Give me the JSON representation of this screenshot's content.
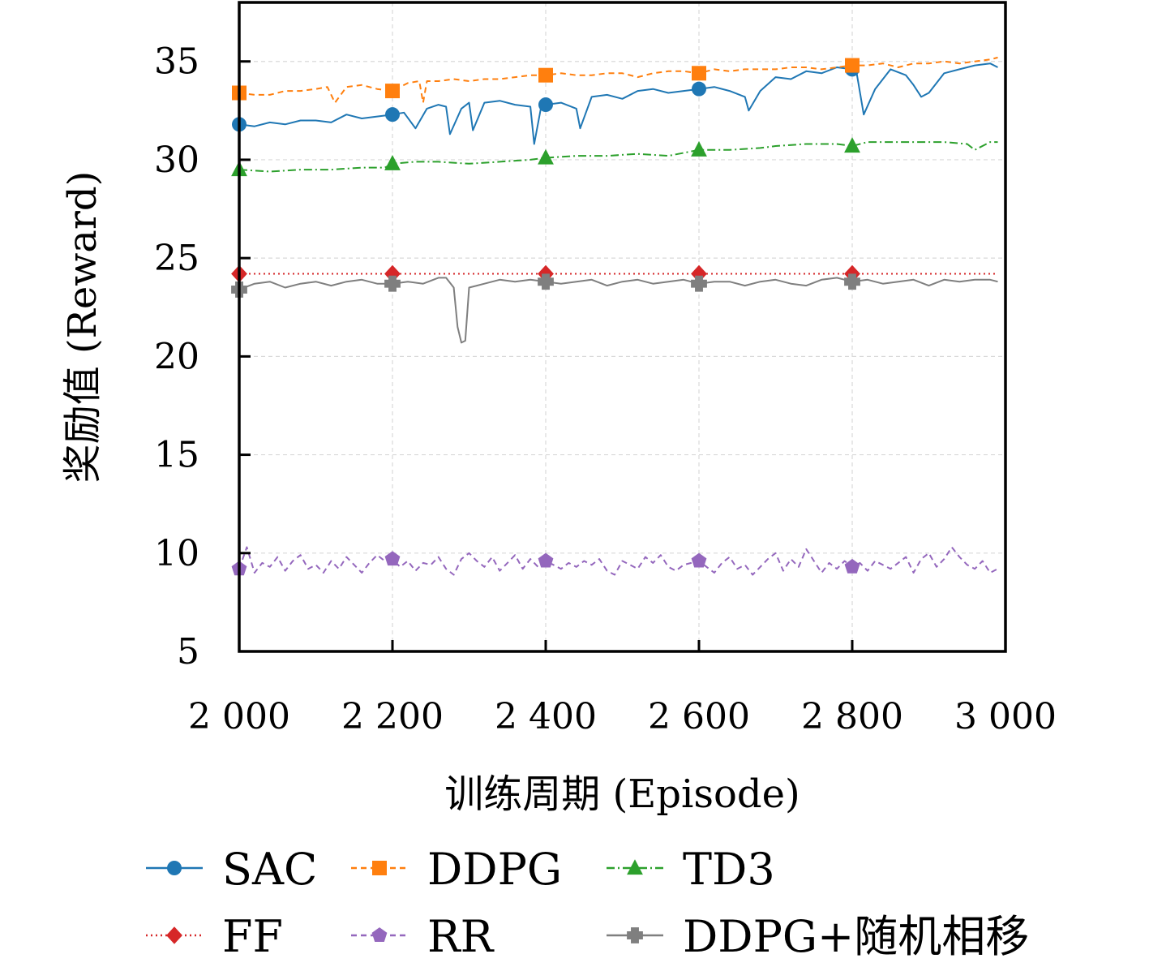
{
  "chart_data": {
    "type": "line",
    "title": "",
    "xlabel": "训练周期 (Episode)",
    "ylabel": "奖励值 (Reward)",
    "xlim": [
      2000,
      3000
    ],
    "ylim": [
      5,
      38
    ],
    "xticks": [
      2000,
      2200,
      2400,
      2600,
      2800,
      3000
    ],
    "xtick_labels": [
      "2 000",
      "2 200",
      "2 400",
      "2 600",
      "2 800",
      "3 000"
    ],
    "yticks": [
      5,
      10,
      15,
      20,
      25,
      30,
      35
    ],
    "ytick_labels": [
      "5",
      "10",
      "15",
      "20",
      "25",
      "30",
      "35"
    ],
    "grid": true,
    "legend_position": "bottom",
    "marker_x": [
      2000,
      2200,
      2400,
      2600,
      2800
    ],
    "series": [
      {
        "name": "SAC",
        "color": "#1f77b4",
        "dash": "solid",
        "marker": "circle",
        "x": [
          2000,
          2020,
          2040,
          2060,
          2080,
          2100,
          2120,
          2140,
          2160,
          2180,
          2200,
          2215,
          2230,
          2245,
          2260,
          2270,
          2275,
          2290,
          2300,
          2305,
          2320,
          2340,
          2360,
          2380,
          2385,
          2395,
          2400,
          2420,
          2440,
          2445,
          2460,
          2480,
          2500,
          2520,
          2540,
          2560,
          2580,
          2600,
          2620,
          2640,
          2660,
          2665,
          2680,
          2700,
          2720,
          2740,
          2760,
          2780,
          2800,
          2805,
          2815,
          2830,
          2850,
          2870,
          2880,
          2890,
          2900,
          2920,
          2940,
          2960,
          2980,
          2990
        ],
        "values": [
          31.8,
          31.7,
          31.9,
          31.8,
          32.0,
          32.0,
          31.9,
          32.3,
          32.1,
          32.2,
          32.3,
          32.4,
          31.6,
          32.6,
          32.8,
          32.7,
          31.3,
          32.6,
          32.9,
          31.5,
          32.9,
          33.0,
          32.8,
          32.7,
          30.8,
          32.9,
          32.8,
          32.9,
          32.6,
          31.6,
          33.2,
          33.3,
          33.1,
          33.5,
          33.6,
          33.4,
          33.5,
          33.6,
          33.7,
          33.5,
          33.2,
          32.5,
          33.5,
          34.2,
          34.1,
          34.5,
          34.4,
          34.7,
          34.6,
          34.6,
          32.3,
          33.6,
          34.6,
          34.3,
          33.8,
          33.2,
          33.4,
          34.4,
          34.6,
          34.8,
          34.9,
          34.7
        ]
      },
      {
        "name": "DDPG",
        "color": "#ff7f0e",
        "dash": "dashed",
        "marker": "square",
        "x": [
          2000,
          2020,
          2040,
          2060,
          2080,
          2100,
          2115,
          2125,
          2140,
          2160,
          2180,
          2200,
          2220,
          2235,
          2240,
          2245,
          2260,
          2280,
          2300,
          2320,
          2340,
          2360,
          2380,
          2400,
          2420,
          2440,
          2460,
          2480,
          2500,
          2520,
          2540,
          2560,
          2580,
          2600,
          2620,
          2640,
          2660,
          2680,
          2700,
          2720,
          2740,
          2760,
          2780,
          2800,
          2820,
          2840,
          2860,
          2880,
          2900,
          2920,
          2940,
          2960,
          2980,
          2990
        ],
        "values": [
          33.4,
          33.3,
          33.3,
          33.5,
          33.5,
          33.6,
          33.7,
          32.9,
          33.7,
          33.8,
          33.6,
          33.5,
          33.9,
          34.0,
          32.9,
          34.0,
          34.0,
          34.1,
          34.0,
          34.1,
          34.1,
          34.2,
          34.3,
          34.3,
          34.4,
          34.3,
          34.3,
          34.4,
          34.4,
          34.2,
          34.4,
          34.5,
          34.5,
          34.4,
          34.6,
          34.5,
          34.6,
          34.6,
          34.6,
          34.7,
          34.7,
          34.6,
          34.7,
          34.8,
          34.8,
          34.9,
          34.7,
          34.9,
          34.9,
          35.0,
          34.9,
          35.0,
          35.1,
          35.2
        ]
      },
      {
        "name": "TD3",
        "color": "#2ca02c",
        "dash": "dashdot",
        "marker": "triangle",
        "x": [
          2000,
          2040,
          2080,
          2120,
          2160,
          2190,
          2200,
          2230,
          2260,
          2300,
          2340,
          2380,
          2400,
          2440,
          2480,
          2520,
          2560,
          2600,
          2640,
          2680,
          2700,
          2740,
          2780,
          2800,
          2820,
          2840,
          2880,
          2920,
          2950,
          2960,
          2980,
          2990
        ],
        "values": [
          29.5,
          29.4,
          29.5,
          29.5,
          29.6,
          29.6,
          29.8,
          29.9,
          29.9,
          29.8,
          29.9,
          30.0,
          30.1,
          30.2,
          30.2,
          30.3,
          30.2,
          30.5,
          30.5,
          30.6,
          30.7,
          30.8,
          30.8,
          30.7,
          30.9,
          30.9,
          30.9,
          30.9,
          30.8,
          30.5,
          30.9,
          30.9
        ]
      },
      {
        "name": "FF",
        "color": "#d62728",
        "dash": "dotted",
        "marker": "diamond",
        "x": [
          2000,
          2990
        ],
        "values": [
          24.2,
          24.2
        ]
      },
      {
        "name": "RR",
        "color": "#9467bd",
        "dash": "dashed",
        "marker": "pentagon",
        "x": [
          2000,
          2010,
          2020,
          2030,
          2040,
          2050,
          2060,
          2070,
          2080,
          2090,
          2100,
          2110,
          2120,
          2130,
          2140,
          2150,
          2160,
          2170,
          2180,
          2190,
          2200,
          2210,
          2220,
          2230,
          2240,
          2250,
          2260,
          2270,
          2280,
          2290,
          2300,
          2310,
          2320,
          2330,
          2340,
          2350,
          2360,
          2370,
          2380,
          2390,
          2400,
          2410,
          2420,
          2430,
          2440,
          2450,
          2460,
          2470,
          2480,
          2490,
          2500,
          2510,
          2520,
          2530,
          2540,
          2550,
          2560,
          2570,
          2580,
          2590,
          2600,
          2610,
          2620,
          2630,
          2640,
          2650,
          2660,
          2670,
          2680,
          2690,
          2700,
          2710,
          2720,
          2730,
          2740,
          2750,
          2760,
          2770,
          2780,
          2790,
          2800,
          2810,
          2820,
          2830,
          2840,
          2850,
          2860,
          2870,
          2880,
          2890,
          2900,
          2910,
          2920,
          2930,
          2940,
          2950,
          2960,
          2970,
          2980,
          2990
        ],
        "values": [
          9.2,
          10.3,
          9.0,
          9.5,
          9.3,
          9.8,
          9.1,
          9.6,
          9.9,
          9.2,
          9.4,
          9.0,
          9.6,
          9.2,
          9.8,
          9.4,
          9.0,
          9.5,
          9.9,
          9.6,
          9.7,
          9.3,
          9.6,
          9.1,
          9.5,
          9.4,
          9.8,
          9.2,
          8.9,
          9.7,
          10.0,
          9.6,
          9.3,
          9.8,
          9.1,
          9.5,
          9.9,
          9.2,
          9.7,
          9.3,
          9.6,
          9.4,
          9.2,
          9.5,
          9.3,
          9.6,
          9.4,
          9.7,
          9.1,
          8.9,
          9.6,
          9.4,
          9.2,
          9.8,
          9.5,
          9.9,
          9.3,
          9.1,
          9.4,
          9.5,
          9.6,
          9.3,
          9.0,
          9.5,
          9.8,
          9.2,
          9.4,
          8.9,
          9.3,
          9.7,
          10.0,
          9.1,
          9.7,
          9.3,
          10.2,
          9.6,
          9.0,
          9.5,
          9.2,
          9.6,
          9.3,
          9.5,
          9.1,
          9.6,
          9.4,
          9.2,
          9.5,
          9.8,
          9.0,
          9.7,
          10.0,
          9.3,
          9.7,
          10.3,
          9.8,
          9.4,
          9.2,
          9.6,
          9.0,
          9.2
        ]
      },
      {
        "name": "DDPG+随机相移",
        "color": "#7f7f7f",
        "dash": "solid",
        "marker": "cross",
        "x": [
          2000,
          2020,
          2040,
          2060,
          2080,
          2100,
          2120,
          2140,
          2160,
          2180,
          2200,
          2220,
          2240,
          2260,
          2270,
          2280,
          2285,
          2290,
          2295,
          2300,
          2310,
          2320,
          2340,
          2360,
          2380,
          2400,
          2420,
          2440,
          2460,
          2480,
          2500,
          2520,
          2540,
          2560,
          2580,
          2600,
          2620,
          2640,
          2660,
          2680,
          2700,
          2720,
          2740,
          2760,
          2780,
          2800,
          2820,
          2840,
          2860,
          2880,
          2900,
          2920,
          2940,
          2960,
          2980,
          2990
        ],
        "values": [
          23.4,
          23.7,
          23.8,
          23.5,
          23.7,
          23.8,
          23.6,
          23.8,
          23.9,
          23.7,
          23.7,
          23.8,
          23.7,
          24.0,
          24.0,
          23.5,
          21.5,
          20.7,
          20.8,
          23.5,
          23.6,
          23.7,
          23.9,
          23.8,
          23.9,
          23.8,
          23.7,
          23.8,
          23.9,
          23.6,
          23.8,
          23.9,
          23.7,
          23.8,
          23.9,
          23.7,
          23.8,
          23.8,
          23.6,
          23.8,
          23.9,
          23.7,
          23.6,
          23.9,
          24.0,
          23.8,
          23.9,
          23.7,
          23.8,
          23.9,
          23.6,
          23.9,
          23.8,
          23.9,
          23.9,
          23.8
        ]
      }
    ]
  }
}
